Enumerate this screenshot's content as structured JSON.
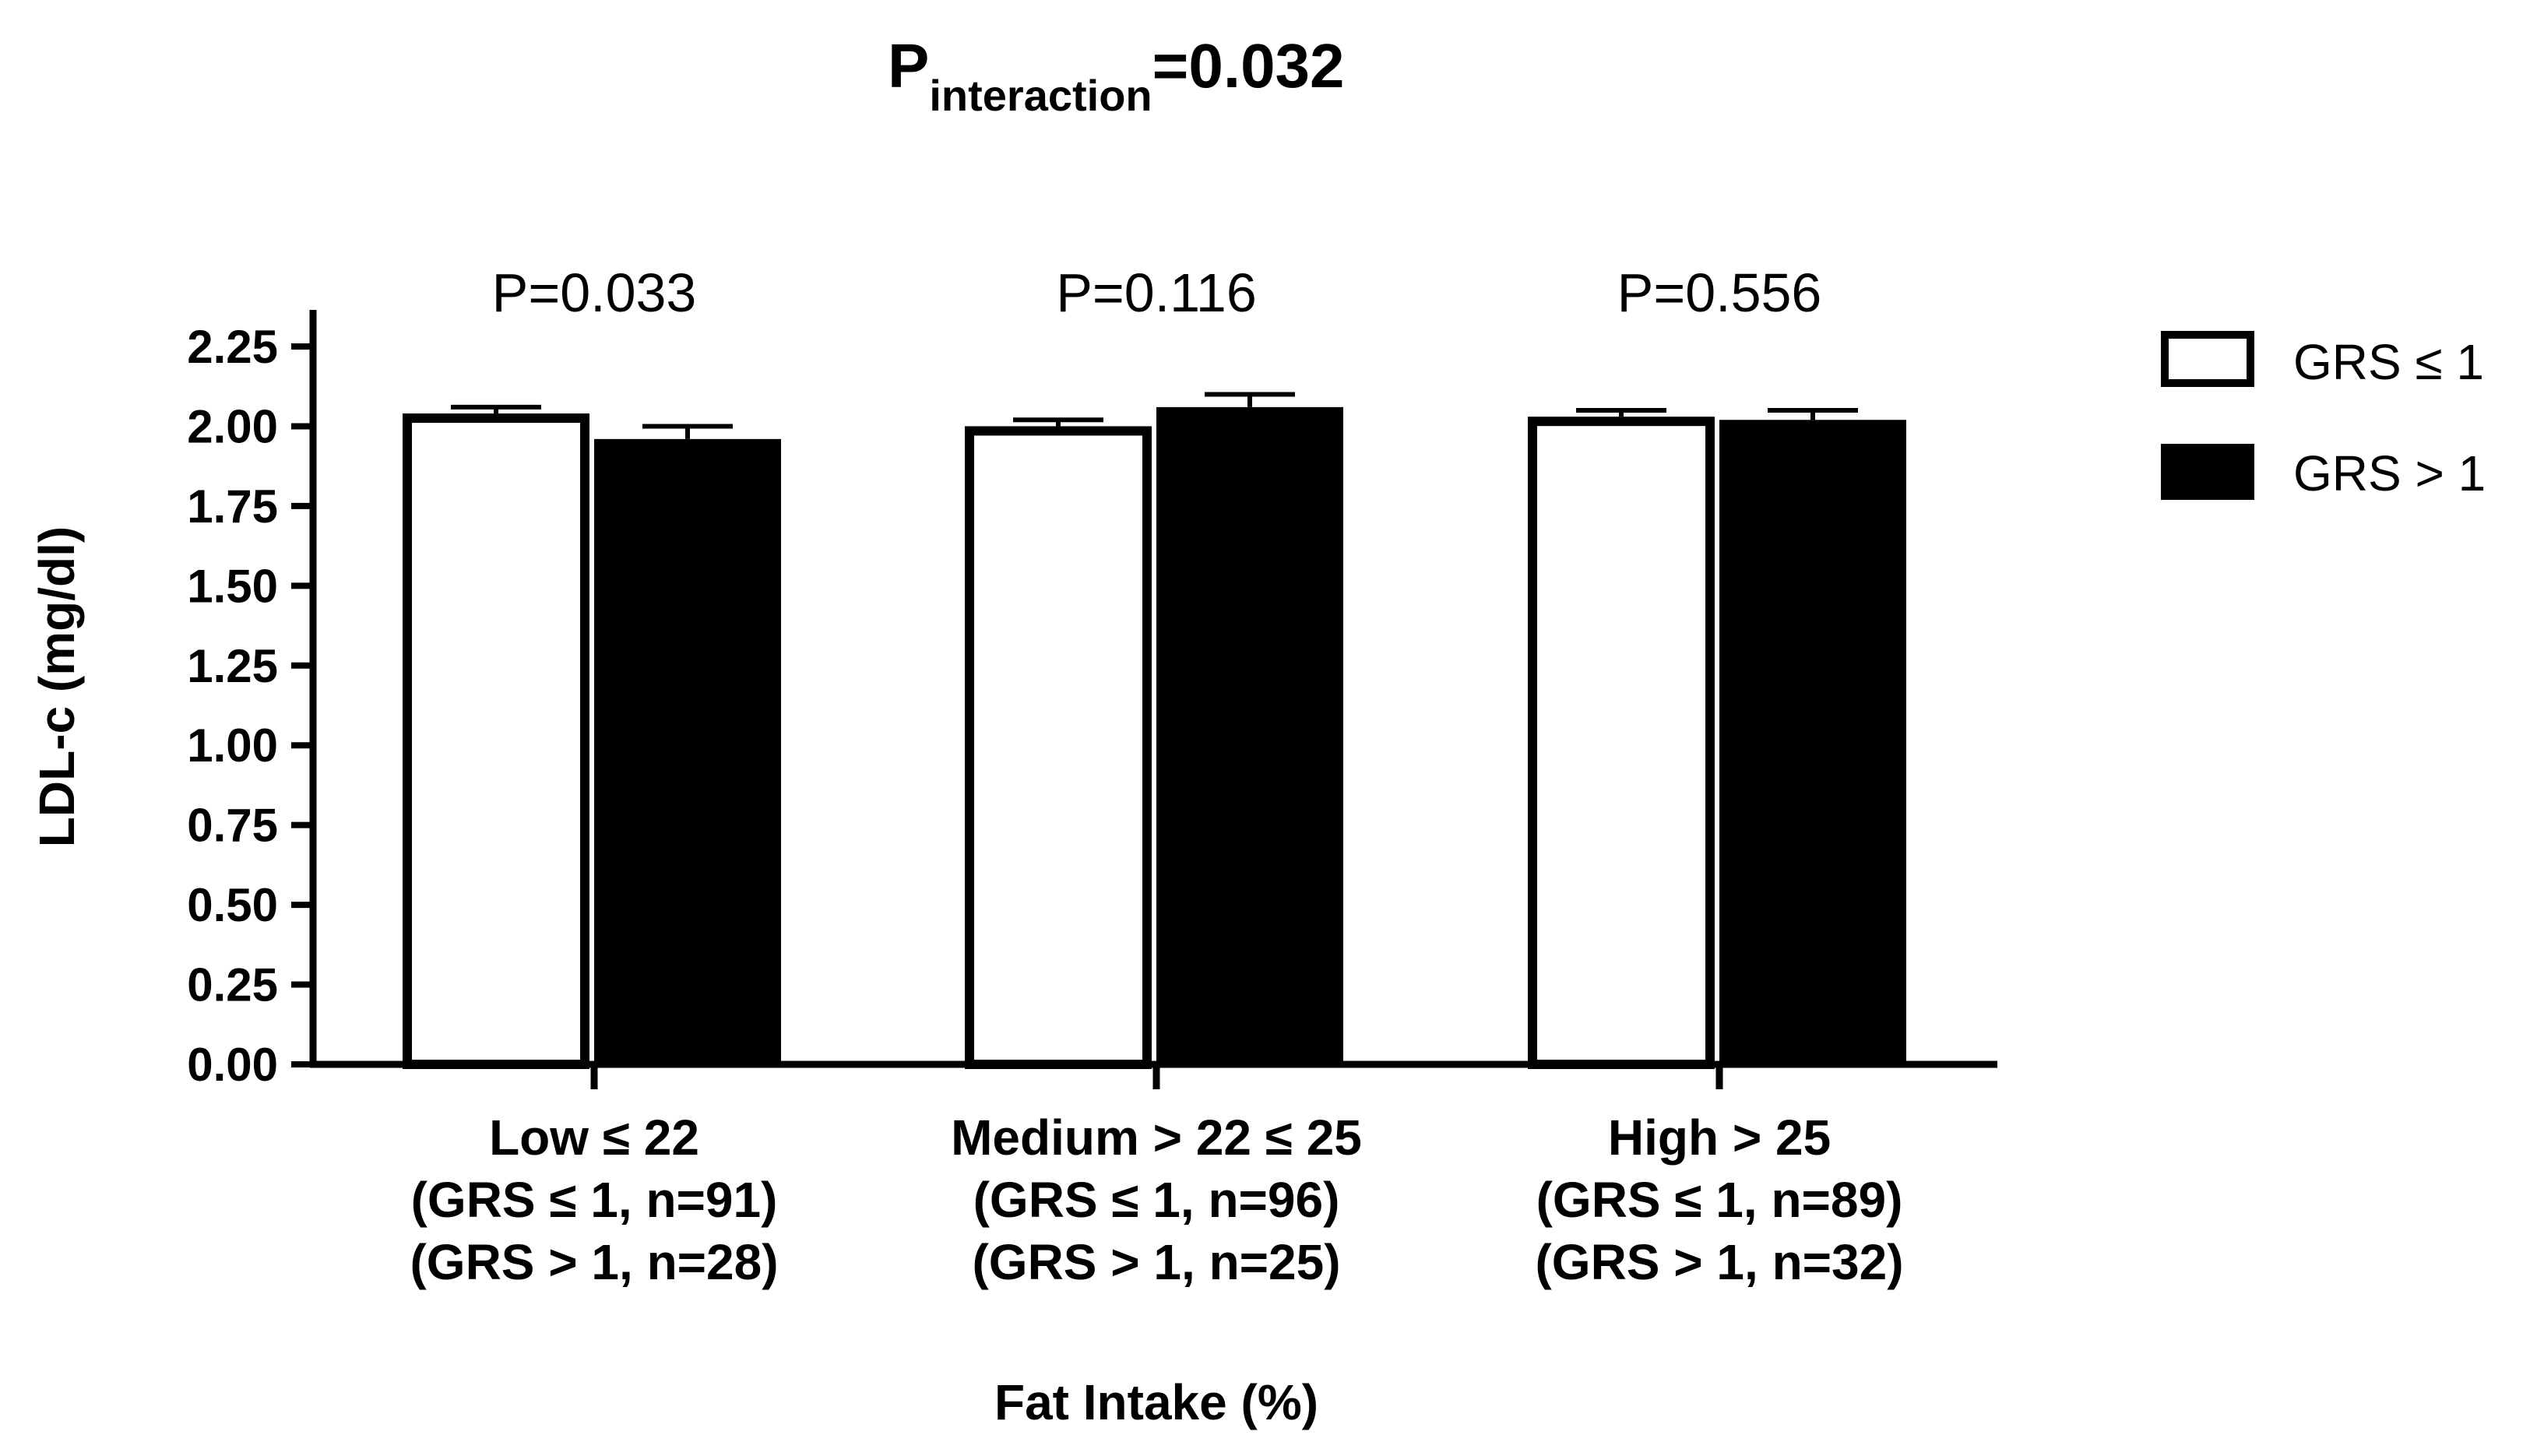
{
  "chart_data": {
    "type": "bar",
    "title_main": "P",
    "title_sub": "interaction",
    "title_value": "=0.032",
    "ylabel": "LDL-c (mg/dl)",
    "xlabel": "Fat Intake (%)",
    "ylim": [
      0,
      2.25
    ],
    "yticks": [
      "0.00",
      "0.25",
      "0.50",
      "0.75",
      "1.00",
      "1.25",
      "1.50",
      "1.75",
      "2.00",
      "2.25"
    ],
    "categories": [
      {
        "lines": [
          "Low ≤ 22",
          "(GRS ≤ 1, n=91)",
          "(GRS > 1, n=28)"
        ],
        "p_value": "P=0.033"
      },
      {
        "lines": [
          "Medium > 22 ≤ 25",
          "(GRS ≤ 1, n=96)",
          "(GRS > 1, n=25)"
        ],
        "p_value": "P=0.116"
      },
      {
        "lines": [
          "High > 25",
          "(GRS ≤ 1, n=89)",
          "(GRS > 1, n=32)"
        ],
        "p_value": "P=0.556"
      }
    ],
    "series": [
      {
        "name": "GRS ≤ 1",
        "fill": "#ffffff",
        "values": [
          2.04,
          2.0,
          2.03
        ],
        "errors": [
          0.02,
          0.02,
          0.02
        ]
      },
      {
        "name": "GRS > 1",
        "fill": "#000000",
        "values": [
          1.96,
          2.06,
          2.02
        ],
        "errors": [
          0.04,
          0.04,
          0.03
        ]
      }
    ],
    "legend_position": "top-right"
  }
}
